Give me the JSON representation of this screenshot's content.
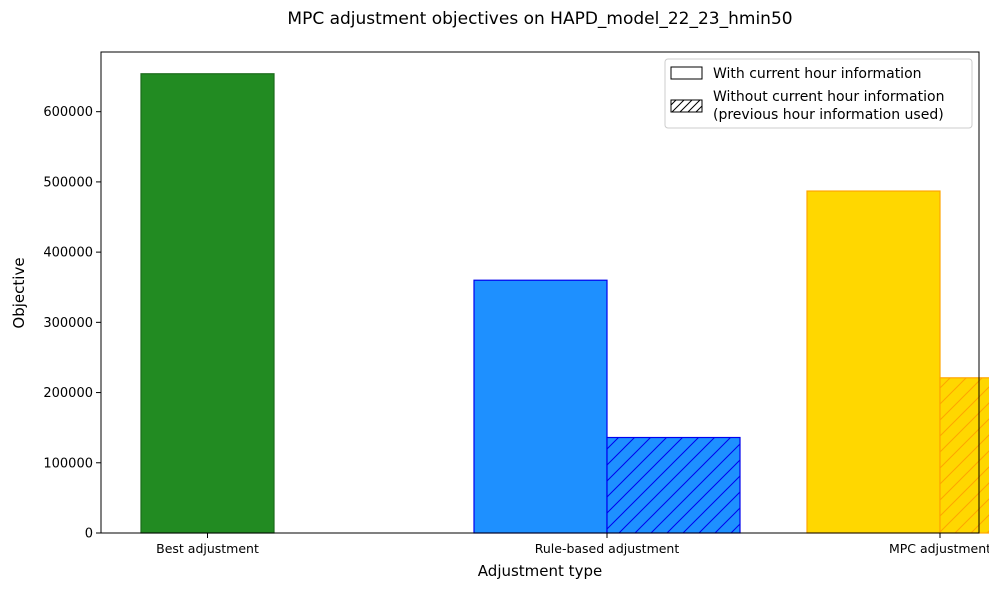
{
  "chart_data": {
    "type": "bar",
    "title": "MPC adjustment objectives on HAPD_model_22_23_hmin50",
    "xlabel": "Adjustment type",
    "ylabel": "Objective",
    "ylim": [
      0,
      685000
    ],
    "yticks": [
      0,
      100000,
      200000,
      300000,
      400000,
      500000,
      600000
    ],
    "ytick_labels": [
      "0",
      "100000",
      "200000",
      "300000",
      "400000",
      "500000",
      "600000"
    ],
    "categories": [
      "Best adjustment",
      "Rule-based adjustment",
      "MPC adjustment"
    ],
    "series": [
      {
        "name": "With current hour information",
        "hatched": false,
        "values": [
          654000,
          360000,
          487000
        ]
      },
      {
        "name": "Without current hour information\n(previous hour information used)",
        "hatched": true,
        "values": [
          null,
          136000,
          221000
        ]
      }
    ],
    "category_colors": [
      {
        "fill": "#228b22",
        "edge": "#1a6b1a"
      },
      {
        "fill": "#1e90ff",
        "edge": "#0000ee"
      },
      {
        "fill": "#ffd700",
        "edge": "#ffa500"
      }
    ],
    "legend": {
      "position": "top-right",
      "entries": [
        {
          "label": "With current hour information",
          "hatched": false
        },
        {
          "label_line1": "Without current hour information",
          "label_line2": "(previous hour information used)",
          "hatched": true
        }
      ]
    },
    "grid": false
  }
}
